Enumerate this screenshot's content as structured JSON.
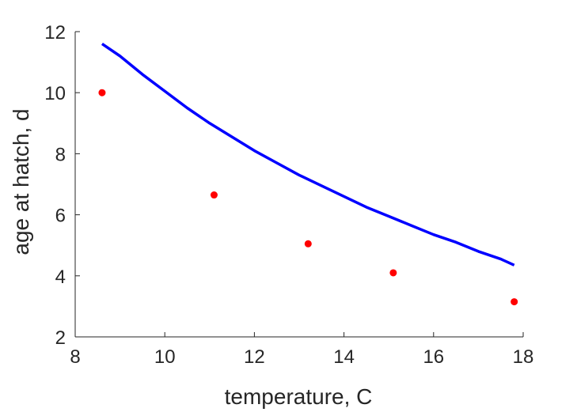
{
  "chart_data": {
    "type": "scatter",
    "title": "",
    "xlabel": "temperature, C",
    "ylabel": "age at hatch, d",
    "xlim": [
      8,
      18
    ],
    "ylim": [
      2,
      12
    ],
    "xticks": [
      8,
      10,
      12,
      14,
      16,
      18
    ],
    "yticks": [
      2,
      4,
      6,
      8,
      10,
      12
    ],
    "grid": false,
    "series": [
      {
        "kind": "scatter",
        "color": "#ff0000",
        "x": [
          8.6,
          11.1,
          13.2,
          15.1,
          17.8
        ],
        "y": [
          10.0,
          6.65,
          5.05,
          4.1,
          3.15
        ]
      },
      {
        "kind": "line",
        "color": "#0000ff",
        "x": [
          8.6,
          9.0,
          9.5,
          10.0,
          10.5,
          11.0,
          11.5,
          12.0,
          12.5,
          13.0,
          13.5,
          14.0,
          14.5,
          15.0,
          15.5,
          16.0,
          16.5,
          17.0,
          17.5,
          17.8
        ],
        "y": [
          11.6,
          11.2,
          10.6,
          10.05,
          9.5,
          9.0,
          8.55,
          8.1,
          7.7,
          7.3,
          6.95,
          6.6,
          6.25,
          5.95,
          5.65,
          5.35,
          5.1,
          4.8,
          4.55,
          4.35
        ]
      }
    ]
  }
}
